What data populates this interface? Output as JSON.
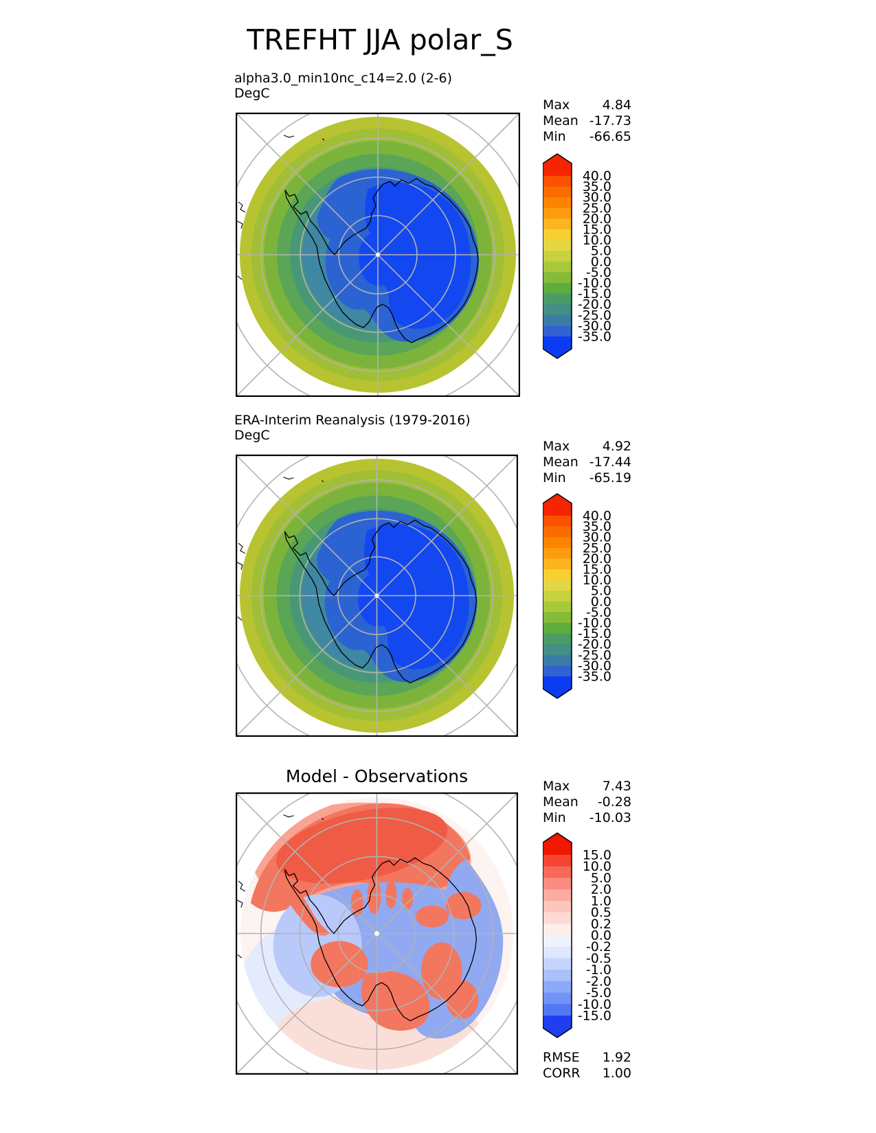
{
  "title": "TREFHT JJA polar_S",
  "chart_data": {
    "type": "heatmap",
    "subtype": "polar-stereographic-contour-maps",
    "variable": "TREFHT",
    "season": "JJA",
    "region": "polar_S",
    "panels": [
      {
        "label": "alpha3.0_min10nc_c14=2.0 (2-6)",
        "units": "DegC",
        "stats": [
          {
            "name": "Max",
            "value": "4.84"
          },
          {
            "name": "Mean",
            "value": "-17.73"
          },
          {
            "name": "Min",
            "value": "-66.65"
          }
        ],
        "colorbar": "temp"
      },
      {
        "label": "ERA-Interim Reanalysis (1979-2016)",
        "units": "DegC",
        "stats": [
          {
            "name": "Max",
            "value": "4.92"
          },
          {
            "name": "Mean",
            "value": "-17.44"
          },
          {
            "name": "Min",
            "value": "-65.19"
          }
        ],
        "colorbar": "temp"
      },
      {
        "label": "Model - Observations",
        "units": "",
        "stats": [
          {
            "name": "Max",
            "value": "7.43"
          },
          {
            "name": "Mean",
            "value": "-0.28"
          },
          {
            "name": "Min",
            "value": "-10.03"
          }
        ],
        "extra_stats": [
          {
            "name": "RMSE",
            "value": "1.92"
          },
          {
            "name": "CORR",
            "value": "1.00"
          }
        ],
        "colorbar": "diff"
      }
    ],
    "colorbars": {
      "temp": {
        "levels": [
          "40.0",
          "35.0",
          "30.0",
          "25.0",
          "20.0",
          "15.0",
          "10.0",
          "5.0",
          "0.0",
          "-5.0",
          "-10.0",
          "-15.0",
          "-20.0",
          "-25.0",
          "-30.0",
          "-35.0"
        ],
        "colors": [
          "#f42500",
          "#fa5200",
          "#fb6c00",
          "#fc8400",
          "#fd9c0e",
          "#fcb51e",
          "#f7cf31",
          "#e5d743",
          "#c8d13f",
          "#a8c93c",
          "#85bb38",
          "#5ead3e",
          "#4b9c64",
          "#438e87",
          "#3b7ca7",
          "#3162cf",
          "#0c3cf2"
        ]
      },
      "diff": {
        "levels": [
          "15.0",
          "10.0",
          "5.0",
          "2.0",
          "1.0",
          "0.5",
          "0.2",
          "0.0",
          "-0.2",
          "-0.5",
          "-1.0",
          "-2.0",
          "-5.0",
          "-10.0",
          "-15.0"
        ],
        "colors": [
          "#f01800",
          "#f64433",
          "#f8695a",
          "#fa8d80",
          "#fcaba0",
          "#fcc6bd",
          "#fddbd4",
          "#feeeea",
          "#eef3fe",
          "#dde7fd",
          "#c5d4fb",
          "#a9c0f9",
          "#8caaf7",
          "#7093f5",
          "#5377f3",
          "#1e3ef0"
        ]
      }
    },
    "map_palette": {
      "temp_rings": [
        "#b8c331",
        "#a0bf37",
        "#7cb43b",
        "#5ba656",
        "#489878",
        "#3f87a3"
      ],
      "temp_blue": "#2b63d2",
      "temp_blue_core": "#1348f0",
      "diff_base": "#fdf3f0",
      "diff_pale_blue": "#e4ebfd",
      "diff_pink": "#fadfd8",
      "diff_red_light": "#f9a392",
      "diff_red": "#f3765f",
      "diff_red_dark": "#ef5b45",
      "diff_blue": "#90a9f1",
      "diff_blue_light": "#b9c9f9",
      "graticule": "#b3b3b3",
      "coast": "#000000",
      "frame": "#000000"
    }
  }
}
